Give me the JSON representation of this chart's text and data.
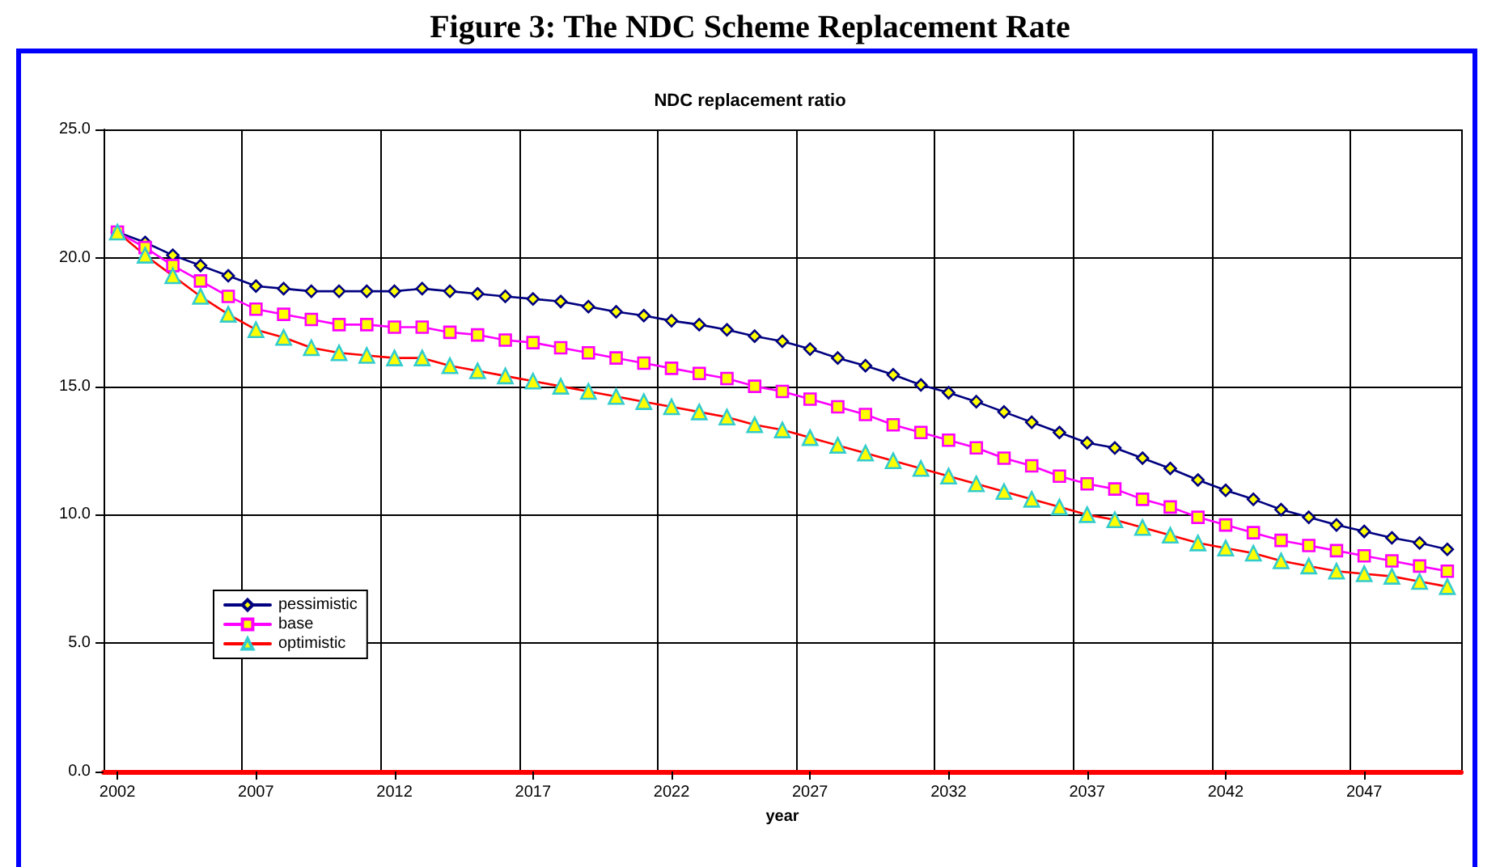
{
  "chart_data": {
    "type": "line",
    "title": "Figure 3: The NDC Scheme Replacement Rate",
    "subtitle": "NDC replacement ratio",
    "xlabel": "year",
    "categories": [
      "2002",
      null,
      null,
      null,
      null,
      "2007",
      null,
      null,
      null,
      null,
      "2012",
      null,
      null,
      null,
      null,
      "2017",
      null,
      null,
      null,
      null,
      "2022",
      null,
      null,
      null,
      null,
      "2027",
      null,
      null,
      null,
      null,
      "2032",
      null,
      null,
      null,
      null,
      "2037",
      null,
      null,
      null,
      null,
      "2042",
      null,
      null,
      null,
      null,
      "2047",
      null,
      null,
      null
    ],
    "series": [
      {
        "name": "pessimistic",
        "color": "#000080",
        "marker": "diamond",
        "values": [
          21.0,
          20.6,
          20.1,
          19.7,
          19.3,
          18.9,
          18.8,
          18.7,
          18.7,
          18.7,
          18.7,
          18.8,
          18.7,
          18.6,
          18.5,
          18.4,
          18.3,
          18.1,
          17.9,
          17.75,
          17.55,
          17.4,
          17.2,
          16.95,
          16.75,
          16.45,
          16.1,
          15.8,
          15.45,
          15.05,
          14.75,
          14.4,
          14.0,
          13.6,
          13.2,
          12.8,
          12.6,
          12.2,
          11.8,
          11.35,
          10.95,
          10.6,
          10.2,
          9.9,
          9.6,
          9.35,
          9.1,
          8.9,
          8.65
        ]
      },
      {
        "name": "base",
        "color": "#ff00ff",
        "marker": "square",
        "values": [
          21.0,
          20.4,
          19.7,
          19.1,
          18.5,
          18.0,
          17.8,
          17.6,
          17.4,
          17.4,
          17.3,
          17.3,
          17.1,
          17.0,
          16.8,
          16.7,
          16.5,
          16.3,
          16.1,
          15.9,
          15.7,
          15.5,
          15.3,
          15.0,
          14.8,
          14.5,
          14.2,
          13.9,
          13.5,
          13.2,
          12.9,
          12.6,
          12.2,
          11.9,
          11.5,
          11.2,
          11.0,
          10.6,
          10.3,
          9.9,
          9.6,
          9.3,
          9.0,
          8.8,
          8.6,
          8.4,
          8.2,
          8.0,
          7.8
        ]
      },
      {
        "name": "optimistic",
        "color": "#ff0000",
        "marker": "triangle",
        "values": [
          21.0,
          20.1,
          19.3,
          18.5,
          17.8,
          17.2,
          16.9,
          16.5,
          16.3,
          16.2,
          16.1,
          16.1,
          15.8,
          15.6,
          15.4,
          15.2,
          15.0,
          14.8,
          14.6,
          14.4,
          14.2,
          14.0,
          13.8,
          13.5,
          13.3,
          13.0,
          12.7,
          12.4,
          12.1,
          11.8,
          11.5,
          11.2,
          10.9,
          10.6,
          10.3,
          10.0,
          9.8,
          9.5,
          9.2,
          8.9,
          8.7,
          8.5,
          8.2,
          8.0,
          7.8,
          7.7,
          7.6,
          7.4,
          7.2
        ]
      }
    ],
    "ylim": [
      0,
      25
    ],
    "yticks": [
      {
        "value": 0,
        "label": "0.0"
      },
      {
        "value": 5,
        "label": "5.0"
      },
      {
        "value": 10,
        "label": "10.0"
      },
      {
        "value": 15,
        "label": "15.0"
      },
      {
        "value": 20,
        "label": "20.0"
      },
      {
        "value": 25,
        "label": "25.0"
      }
    ],
    "grid": true,
    "legend": "bottom left",
    "line_style": "solid"
  }
}
